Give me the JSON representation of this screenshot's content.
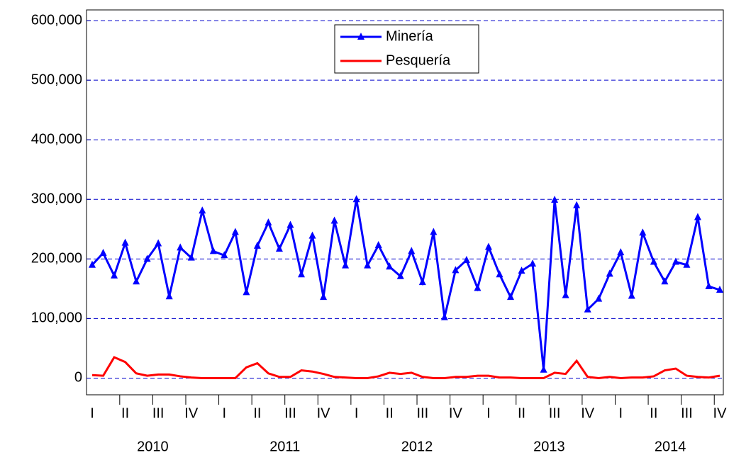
{
  "chart_data": {
    "type": "line",
    "categories": [
      "I",
      null,
      null,
      "II",
      null,
      null,
      "III",
      null,
      null,
      "IV",
      null,
      null,
      "I",
      null,
      null,
      "II",
      null,
      null,
      "III",
      null,
      null,
      "IV",
      null,
      null,
      "I",
      null,
      null,
      "II",
      null,
      null,
      "III",
      null,
      null,
      "IV",
      null,
      null,
      "I",
      null,
      null,
      "II",
      null,
      null,
      "III",
      null,
      null,
      "IV",
      null,
      null,
      "I",
      null,
      null,
      "II",
      null,
      null,
      "III",
      null,
      null,
      "IV"
    ],
    "years": [
      "2010",
      "2011",
      "2012",
      "2013",
      "2014"
    ],
    "series": [
      {
        "name": "Minería",
        "color": "#0000ff",
        "marker": "triangle",
        "values": [
          190000,
          210000,
          172000,
          227000,
          162000,
          200000,
          226000,
          137000,
          219000,
          202000,
          281000,
          213000,
          206000,
          245000,
          144000,
          222000,
          261000,
          217000,
          257000,
          174000,
          239000,
          136000,
          264000,
          189000,
          300000,
          189000,
          223000,
          187000,
          171000,
          213000,
          161000,
          245000,
          102000,
          181000,
          198000,
          151000,
          220000,
          174000,
          136000,
          180000,
          192000,
          14000,
          299000,
          139000,
          290000,
          115000,
          133000,
          175000,
          211000,
          138000,
          244000,
          195000,
          162000,
          195000,
          190000,
          270000,
          154000,
          148000
        ]
      },
      {
        "name": "Pesquería",
        "color": "#ff0000",
        "values": [
          5000,
          4000,
          35000,
          27000,
          8000,
          4000,
          6000,
          6000,
          3000,
          1000,
          0,
          0,
          0,
          0,
          18000,
          25000,
          8000,
          2000,
          2000,
          13000,
          11000,
          7000,
          2000,
          1000,
          0,
          0,
          3000,
          9000,
          7000,
          9000,
          2000,
          0,
          0,
          2000,
          2000,
          4000,
          4000,
          1000,
          1000,
          0,
          0,
          0,
          9000,
          7000,
          29000,
          2000,
          0,
          2000,
          0,
          1000,
          1000,
          3000,
          13000,
          16000,
          4000,
          2000,
          1000,
          4000
        ]
      }
    ],
    "ylim": [
      -28000,
      618000
    ],
    "yticks": [
      0,
      {
        "value": 100000,
        "label": "100,000"
      },
      {
        "value": 200000,
        "label": "200,000"
      },
      {
        "value": 300000,
        "label": "300,000"
      },
      {
        "value": 400000,
        "label": "400,000"
      },
      {
        "value": 500000,
        "label": "500,000"
      },
      {
        "value": 600000,
        "label": "600,000"
      }
    ],
    "grid": true,
    "legend": "top"
  }
}
